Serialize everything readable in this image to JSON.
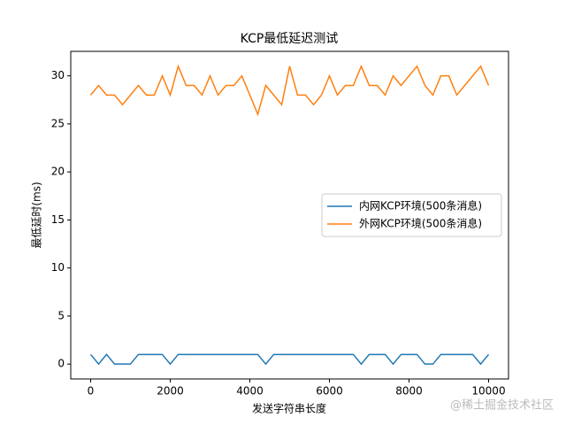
{
  "chart_data": {
    "type": "line",
    "title": "KCP最低延迟测试",
    "x_label": "发送字符串长度",
    "y_label": "最低延时(ms)",
    "x": [
      0,
      200,
      400,
      600,
      800,
      1000,
      1200,
      1400,
      1600,
      1800,
      2000,
      2200,
      2400,
      2600,
      2800,
      3000,
      3200,
      3400,
      3600,
      3800,
      4000,
      4200,
      4400,
      4600,
      4800,
      5000,
      5200,
      5400,
      5600,
      5800,
      6000,
      6200,
      6400,
      6600,
      6800,
      7000,
      7200,
      7400,
      7600,
      7800,
      8000,
      8200,
      8400,
      8600,
      8800,
      9000,
      9200,
      9400,
      9600,
      9800,
      10000
    ],
    "series": [
      {
        "name": "内网KCP环境(500条消息)",
        "color": "#1f77b4",
        "values": [
          1,
          0,
          1,
          0,
          0,
          0,
          1,
          1,
          1,
          1,
          0,
          1,
          1,
          1,
          1,
          1,
          1,
          1,
          1,
          1,
          1,
          1,
          0,
          1,
          1,
          1,
          1,
          1,
          1,
          1,
          1,
          1,
          1,
          1,
          0,
          1,
          1,
          1,
          0,
          1,
          1,
          1,
          0,
          0,
          1,
          1,
          1,
          1,
          1,
          0,
          1
        ]
      },
      {
        "name": "外网KCP环境(500条消息)",
        "color": "#ff7f0e",
        "values": [
          28,
          29,
          28,
          28,
          27,
          28,
          29,
          28,
          28,
          30,
          28,
          31,
          29,
          29,
          28,
          30,
          28,
          29,
          29,
          30,
          28,
          26,
          29,
          28,
          27,
          31,
          28,
          28,
          27,
          28,
          30,
          28,
          29,
          29,
          31,
          29,
          29,
          28,
          30,
          29,
          30,
          31,
          29,
          28,
          30,
          30,
          28,
          29,
          30,
          31,
          29
        ]
      }
    ],
    "xlim": [
      -500,
      10500
    ],
    "ylim": [
      -1.55,
      32.55
    ],
    "xticks": [
      0,
      2000,
      4000,
      6000,
      8000,
      10000
    ],
    "yticks": [
      0,
      5,
      10,
      15,
      20,
      25,
      30
    ],
    "legend": "center right",
    "grid": false
  },
  "watermark": "@稀土掘金技术社区"
}
